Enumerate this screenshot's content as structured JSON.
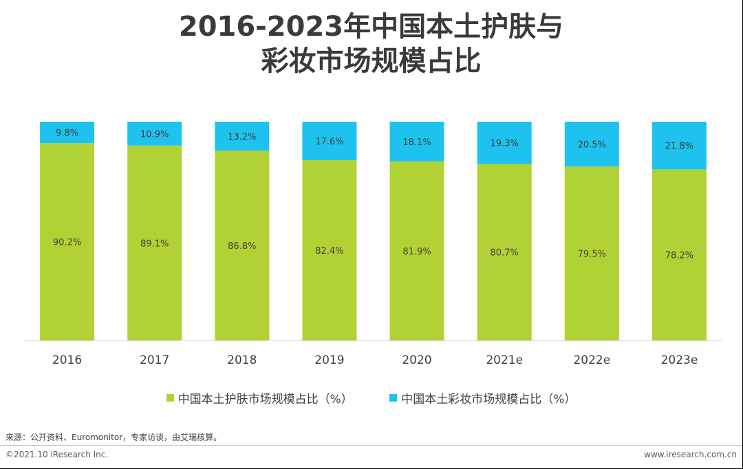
{
  "title_lines": [
    "2016-2023年中国本土护肤与",
    "彩妆市场规模占比"
  ],
  "chart_data": {
    "type": "bar",
    "stacked": true,
    "categories": [
      "2016",
      "2017",
      "2018",
      "2019",
      "2020",
      "2021e",
      "2022e",
      "2023e"
    ],
    "series": [
      {
        "name": "中国本土护肤市场规模占比（%）",
        "color": "#b1d234",
        "values": [
          90.2,
          89.1,
          86.8,
          82.4,
          81.9,
          80.7,
          79.5,
          78.2
        ],
        "labels": [
          "90.2%",
          "89.1%",
          "86.8%",
          "82.4%",
          "81.9%",
          "80.7%",
          "79.5%",
          "78.2%"
        ]
      },
      {
        "name": "中国本土彩妆市场规模占比（%）",
        "color": "#1ec2ee",
        "values": [
          9.8,
          10.9,
          13.2,
          17.6,
          18.1,
          19.3,
          20.5,
          21.8
        ],
        "labels": [
          "9.8%",
          "10.9%",
          "13.2%",
          "17.6%",
          "18.1%",
          "19.3%",
          "20.5%",
          "21.8%"
        ]
      }
    ],
    "ylim": [
      0,
      100
    ],
    "legend_position": "bottom"
  },
  "footer": {
    "source": "来源：公开资料、Euromonitor，专家访谈，由艾瑞核算。",
    "copyright": "©2021.10 iResearch Inc.",
    "website": "www.iresearch.com.cn"
  }
}
